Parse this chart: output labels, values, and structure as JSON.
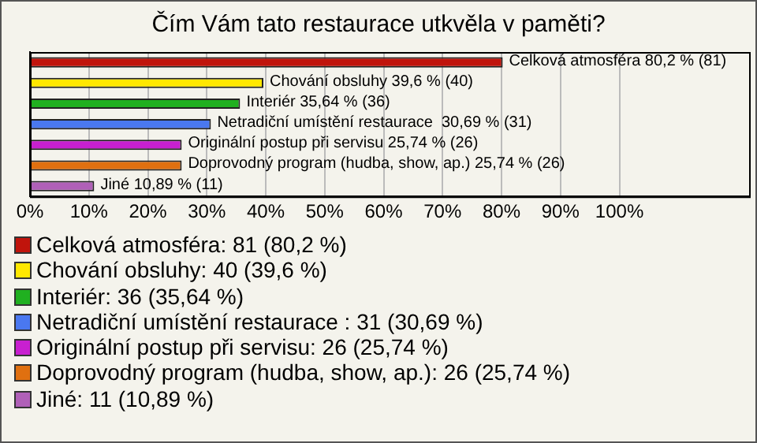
{
  "chart_data": {
    "type": "bar",
    "orientation": "horizontal",
    "stacked": true,
    "title": "Čím Vám tato restaurace utkvěla v paměti?",
    "categories": [
      null,
      null,
      null,
      null,
      null,
      null,
      null
    ],
    "series": [
      {
        "name": "Celková atmosféra: 81 (80,2 %)",
        "color": "#c0140c",
        "values": [
          80.2,
          null,
          null,
          null,
          null,
          null,
          null
        ],
        "value_labels": [
          "Celková atmosféra 80,2 % (81)",
          null,
          null,
          null,
          null,
          null,
          null
        ]
      },
      {
        "name": "Chování obsluhy: 40 (39,6 %)",
        "color": "#ffe800",
        "values": [
          null,
          39.6,
          null,
          null,
          null,
          null,
          null
        ],
        "value_labels": [
          null,
          "Chování obsluhy 39,6 % (40)",
          null,
          null,
          null,
          null,
          null
        ]
      },
      {
        "name": "Interiér: 36 (35,64 %)",
        "color": "#20b020",
        "values": [
          null,
          null,
          35.64,
          null,
          null,
          null,
          null
        ],
        "value_labels": [
          null,
          null,
          "Interiér 35,64 % (36)",
          null,
          null,
          null,
          null
        ]
      },
      {
        "name": "Netradiční umístění restaurace : 31 (30,69 %)",
        "color": "#4a78f0",
        "values": [
          null,
          null,
          null,
          30.69,
          null,
          null,
          null
        ],
        "value_labels": [
          null,
          null,
          null,
          "Netradiční umístění restaurace  30,69 % (31)",
          null,
          null,
          null
        ]
      },
      {
        "name": "Originální postup při servisu: 26 (25,74 %)",
        "color": "#c820d0",
        "values": [
          null,
          null,
          null,
          null,
          25.74,
          null,
          null
        ],
        "value_labels": [
          null,
          null,
          null,
          null,
          "Originální postup při servisu 25,74 % (26)",
          null,
          null
        ]
      },
      {
        "name": "Doprovodný program (hudba, show, ap.): 26 (25,74 %)",
        "color": "#e07010",
        "values": [
          null,
          null,
          null,
          null,
          null,
          25.74,
          null
        ],
        "value_labels": [
          null,
          null,
          null,
          null,
          null,
          "Doprovodný program (hudba, show, ap.) 25,74 % (26)",
          null
        ]
      },
      {
        "name": "Jiné: 11 (10,89 %)",
        "color": "#b060b8",
        "values": [
          null,
          null,
          null,
          null,
          null,
          null,
          10.89
        ],
        "value_labels": [
          null,
          null,
          null,
          null,
          null,
          null,
          "Jiné 10,89 % (11)"
        ]
      }
    ],
    "xlim": [
      0,
      122
    ],
    "xticks": [
      {
        "value": 0,
        "label": "0%"
      },
      {
        "value": 10,
        "label": "10%"
      },
      {
        "value": 20,
        "label": "20%"
      },
      {
        "value": 30,
        "label": "30%"
      },
      {
        "value": 40,
        "label": "40%"
      },
      {
        "value": 50,
        "label": "50%"
      },
      {
        "value": 60,
        "label": "60%"
      },
      {
        "value": 70,
        "label": "70%"
      },
      {
        "value": 80,
        "label": "80%"
      },
      {
        "value": 90,
        "label": "90%"
      },
      {
        "value": 100,
        "label": "100%"
      }
    ],
    "grid": "x",
    "legend": "bottom"
  }
}
